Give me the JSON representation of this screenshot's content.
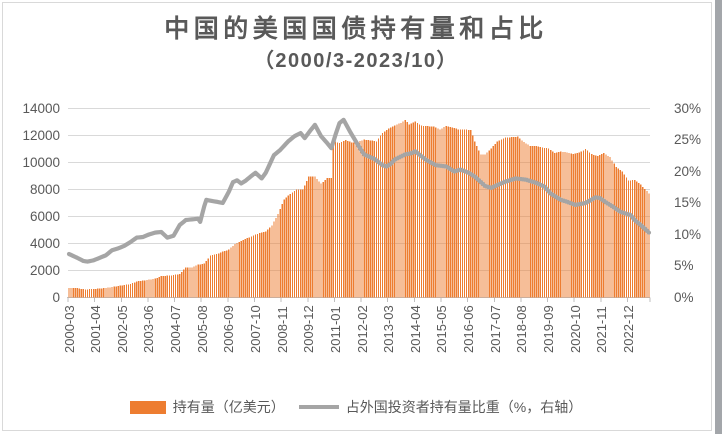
{
  "title": {
    "line1": "中国的美国国债持有量和占比",
    "line2": "（2000/3-2023/10）"
  },
  "legend": [
    {
      "label": "持有量（亿美元）",
      "marker": "bar-swatch",
      "color": "#ED7D31"
    },
    {
      "label": "占外国投资者持有量比重（%，右轴）",
      "marker": "line-swatch",
      "color": "#A5A5A5"
    }
  ],
  "colors": {
    "bar": "#ED7D31",
    "line": "#A5A5A5",
    "text": "#595959",
    "grid": "#D9D9D9",
    "axis": "#BFBFBF"
  },
  "chart_data": {
    "type": "bar",
    "subtype": "combo-bar-line-dual-axis",
    "title": "中国的美国国债持有量和占比（2000/3-2023/10）",
    "x_start": "2000-03",
    "x_end": "2023-10",
    "months_total": 284,
    "x_tick_labels": [
      "2000-03",
      "2001-04",
      "2002-05",
      "2003-06",
      "2004-07",
      "2005-08",
      "2006-09",
      "2007-10",
      "2008-11",
      "2009-12",
      "2011-01",
      "2012-02",
      "2013-03",
      "2014-04",
      "2015-05",
      "2016-06",
      "2017-07",
      "2018-08",
      "2019-09",
      "2020-10",
      "2021-11",
      "2022-12"
    ],
    "x_label_interval_months": 13,
    "left_axis": {
      "min": 0,
      "max": 14000,
      "step": 2000,
      "labels": [
        "14000",
        "12000",
        "10000",
        "8000",
        "6000",
        "4000",
        "2000",
        "0"
      ]
    },
    "right_axis": {
      "min": 0,
      "max": 30,
      "step": 5,
      "labels": [
        "30%",
        "25%",
        "20%",
        "15%",
        "10%",
        "5%",
        "0%"
      ]
    },
    "grid": true,
    "legend_position": "bottom",
    "note": "anchors are [monthIndex since 2000-03, value]; monthly bars/line points are linearly interpolated between anchors",
    "series": [
      {
        "name": "持有量（亿美元）",
        "type": "bar",
        "axis": "left",
        "color": "#ED7D31",
        "anchors": [
          [
            0,
            714
          ],
          [
            4,
            690
          ],
          [
            7,
            615
          ],
          [
            9,
            603
          ],
          [
            12,
            630
          ],
          [
            18,
            710
          ],
          [
            24,
            850
          ],
          [
            30,
            1000
          ],
          [
            33,
            1184
          ],
          [
            36,
            1250
          ],
          [
            42,
            1400
          ],
          [
            45,
            1590
          ],
          [
            48,
            1620
          ],
          [
            51,
            1660
          ],
          [
            54,
            1740
          ],
          [
            57,
            2229
          ],
          [
            60,
            2240
          ],
          [
            63,
            2435
          ],
          [
            66,
            2520
          ],
          [
            69,
            3100
          ],
          [
            72,
            3210
          ],
          [
            75,
            3390
          ],
          [
            78,
            3550
          ],
          [
            81,
            3969
          ],
          [
            84,
            4200
          ],
          [
            87,
            4400
          ],
          [
            90,
            4587
          ],
          [
            93,
            4776
          ],
          [
            96,
            4900
          ],
          [
            99,
            5350
          ],
          [
            102,
            6180
          ],
          [
            105,
            7274
          ],
          [
            108,
            7680
          ],
          [
            111,
            8015
          ],
          [
            114,
            7989
          ],
          [
            117,
            8948
          ],
          [
            120,
            8952
          ],
          [
            123,
            8437
          ],
          [
            126,
            8838
          ],
          [
            128,
            8840
          ],
          [
            129,
            11601
          ],
          [
            132,
            11449
          ],
          [
            135,
            11655
          ],
          [
            138,
            11483
          ],
          [
            141,
            11519
          ],
          [
            144,
            11703
          ],
          [
            147,
            11643
          ],
          [
            150,
            11557
          ],
          [
            153,
            12204
          ],
          [
            156,
            12514
          ],
          [
            159,
            12758
          ],
          [
            162,
            12938
          ],
          [
            164,
            13167
          ],
          [
            166,
            12800
          ],
          [
            169,
            13050
          ],
          [
            172,
            12724
          ],
          [
            175,
            12693
          ],
          [
            178,
            12664
          ],
          [
            181,
            12443
          ],
          [
            184,
            12712
          ],
          [
            187,
            12584
          ],
          [
            190,
            12461
          ],
          [
            193,
            12448
          ],
          [
            196,
            12408
          ],
          [
            198,
            11570
          ],
          [
            200,
            10900
          ],
          [
            201,
            10584
          ],
          [
            203,
            10598
          ],
          [
            206,
            11022
          ],
          [
            209,
            11570
          ],
          [
            213,
            11849
          ],
          [
            216,
            11878
          ],
          [
            219,
            11912
          ],
          [
            222,
            11514
          ],
          [
            225,
            11235
          ],
          [
            228,
            11205
          ],
          [
            231,
            11125
          ],
          [
            234,
            11024
          ],
          [
            237,
            10699
          ],
          [
            240,
            10816
          ],
          [
            243,
            10744
          ],
          [
            246,
            10618
          ],
          [
            249,
            10723
          ],
          [
            252,
            11000
          ],
          [
            255,
            10617
          ],
          [
            258,
            10474
          ],
          [
            261,
            10687
          ],
          [
            264,
            10399
          ],
          [
            267,
            9678
          ],
          [
            270,
            9336
          ],
          [
            273,
            8671
          ],
          [
            276,
            8693
          ],
          [
            279,
            8354
          ],
          [
            281,
            8054
          ],
          [
            283,
            7696
          ]
        ]
      },
      {
        "name": "占外国投资者持有量比重（%，右轴）",
        "type": "line",
        "axis": "right",
        "color": "#A5A5A5",
        "anchors": [
          [
            0,
            6.9
          ],
          [
            4,
            6.3
          ],
          [
            7,
            5.8
          ],
          [
            9,
            5.7
          ],
          [
            12,
            5.9
          ],
          [
            15,
            6.3
          ],
          [
            18,
            6.7
          ],
          [
            21,
            7.5
          ],
          [
            24,
            7.8
          ],
          [
            27,
            8.2
          ],
          [
            30,
            8.8
          ],
          [
            33,
            9.5
          ],
          [
            36,
            9.6
          ],
          [
            39,
            10.0
          ],
          [
            42,
            10.3
          ],
          [
            45,
            10.4
          ],
          [
            48,
            9.5
          ],
          [
            51,
            9.8
          ],
          [
            54,
            11.5
          ],
          [
            57,
            12.3
          ],
          [
            60,
            12.4
          ],
          [
            63,
            12.5
          ],
          [
            64,
            12.0
          ],
          [
            66,
            14.5
          ],
          [
            67,
            15.5
          ],
          [
            70,
            15.3
          ],
          [
            72,
            15.2
          ],
          [
            75,
            15.0
          ],
          [
            78,
            16.8
          ],
          [
            80,
            18.3
          ],
          [
            82,
            18.6
          ],
          [
            84,
            18.1
          ],
          [
            86,
            18.5
          ],
          [
            89,
            19.3
          ],
          [
            91,
            19.8
          ],
          [
            94,
            18.9
          ],
          [
            96,
            19.8
          ],
          [
            100,
            22.6
          ],
          [
            103,
            23.4
          ],
          [
            107,
            24.8
          ],
          [
            110,
            25.6
          ],
          [
            113,
            26.1
          ],
          [
            115,
            25.3
          ],
          [
            118,
            26.6
          ],
          [
            120,
            27.4
          ],
          [
            123,
            25.6
          ],
          [
            126,
            24.5
          ],
          [
            128,
            23.7
          ],
          [
            130,
            25.8
          ],
          [
            132,
            27.7
          ],
          [
            134,
            28.2
          ],
          [
            137,
            26.4
          ],
          [
            141,
            24.2
          ],
          [
            144,
            22.7
          ],
          [
            149,
            22.0
          ],
          [
            153,
            21.0
          ],
          [
            155,
            20.8
          ],
          [
            157,
            21.2
          ],
          [
            159,
            21.9
          ],
          [
            164,
            22.7
          ],
          [
            167,
            22.9
          ],
          [
            169,
            23.2
          ],
          [
            174,
            21.9
          ],
          [
            179,
            21.0
          ],
          [
            184,
            20.8
          ],
          [
            188,
            20.0
          ],
          [
            191,
            20.3
          ],
          [
            195,
            19.8
          ],
          [
            198,
            19.2
          ],
          [
            203,
            17.7
          ],
          [
            206,
            17.4
          ],
          [
            208,
            17.7
          ],
          [
            213,
            18.4
          ],
          [
            218,
            18.9
          ],
          [
            223,
            18.7
          ],
          [
            228,
            18.2
          ],
          [
            232,
            17.6
          ],
          [
            235,
            16.5
          ],
          [
            240,
            15.5
          ],
          [
            243,
            15.2
          ],
          [
            247,
            14.7
          ],
          [
            252,
            15.0
          ],
          [
            257,
            15.9
          ],
          [
            259,
            15.8
          ],
          [
            262,
            15.1
          ],
          [
            265,
            14.5
          ],
          [
            269,
            13.6
          ],
          [
            274,
            13.1
          ],
          [
            276,
            12.3
          ],
          [
            279,
            11.5
          ],
          [
            281,
            10.9
          ],
          [
            283,
            10.3
          ]
        ]
      }
    ]
  }
}
